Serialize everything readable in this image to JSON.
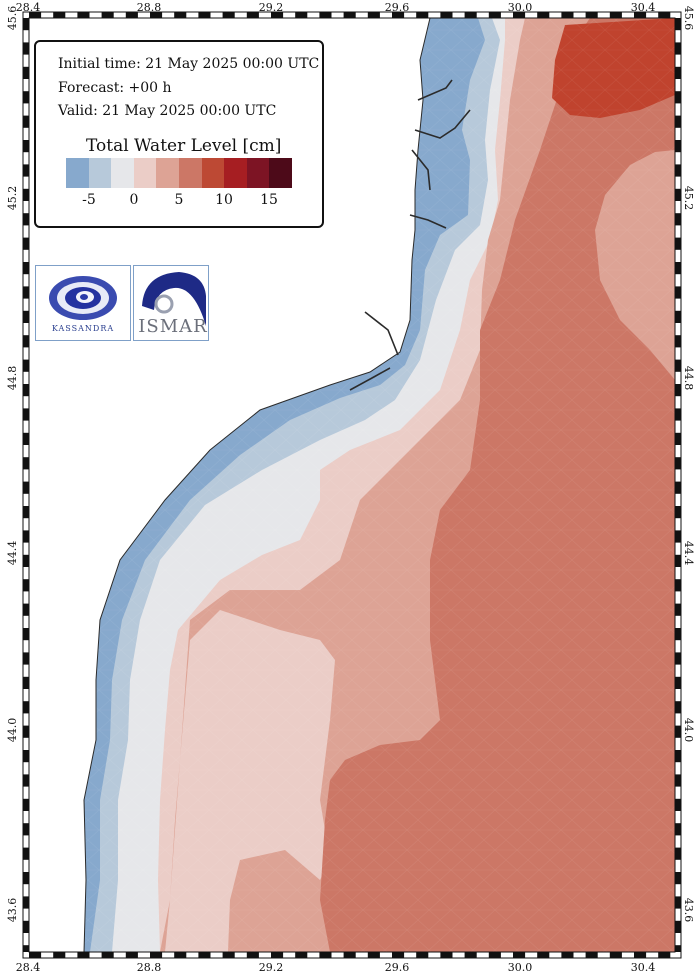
{
  "map": {
    "lon_ticks": [
      "28.4",
      "28.8",
      "29.2",
      "29.6",
      "30.0",
      "30.4"
    ],
    "lat_ticks": [
      "45.6",
      "45.2",
      "44.8",
      "44.4",
      "44.0",
      "43.6"
    ]
  },
  "info": {
    "initial_time": "Initial time: 21 May 2025 00:00 UTC",
    "forecast": "Forecast: +00 h",
    "valid": "Valid: 21 May 2025 00:00 UTC"
  },
  "legend": {
    "title": "Total Water Level [cm]",
    "colors": [
      "#87a9cd",
      "#b7c9da",
      "#e6e7ea",
      "#ebcdc7",
      "#dda395",
      "#cc7766",
      "#bd4934",
      "#a61e22",
      "#7d1424",
      "#4d0a19"
    ],
    "labels": [
      "-5",
      "0",
      "5",
      "10",
      "15"
    ]
  },
  "logos": {
    "kassandra": "KASSANDRA",
    "ismar": "ISMAR"
  },
  "colors": {
    "sea_strong_positive": "#c0432e",
    "sea_positive": "#cc7766",
    "sea_light_positive": "#dda395",
    "sea_pale_positive": "#ebcdc7",
    "sea_neutral": "#e6e7ea",
    "sea_slight_negative": "#b7c9da",
    "sea_negative": "#87a9cd"
  }
}
